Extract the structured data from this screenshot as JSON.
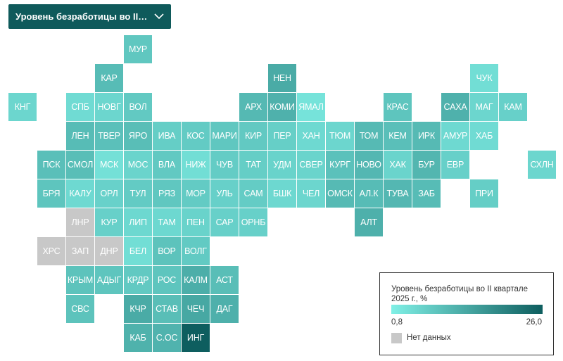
{
  "dropdown": {
    "label": "Уровень безработицы во II кв..."
  },
  "colors": {
    "low": "#80f0e6",
    "high": "#0e5e5f",
    "no_data": "#c8c8c8",
    "dropdown_bg": "#0f5a5b"
  },
  "chart_data": {
    "type": "heatmap",
    "title": "Уровень безработицы во II квартале 2025 г., %",
    "scale": {
      "min": 0.8,
      "max": 26.0,
      "min_label": "0,8",
      "max_label": "26,0"
    },
    "no_data_label": "Нет данных",
    "regions": [
      {
        "label": "МУР",
        "row": 0,
        "col": 4,
        "value": 2.8
      },
      {
        "label": "КАР",
        "row": 1,
        "col": 3,
        "value": 4.0
      },
      {
        "label": "НЕН",
        "row": 1,
        "col": 9,
        "value": 6.5
      },
      {
        "label": "ЧУК",
        "row": 1,
        "col": 16,
        "value": 1.2
      },
      {
        "label": "КНГ",
        "row": 2,
        "col": 0,
        "value": 1.6
      },
      {
        "label": "СПБ",
        "row": 2,
        "col": 2,
        "value": 1.3
      },
      {
        "label": "НОВГ",
        "row": 2,
        "col": 3,
        "value": 1.6
      },
      {
        "label": "ВОЛ",
        "row": 2,
        "col": 4,
        "value": 2.6
      },
      {
        "label": "АРХ",
        "row": 2,
        "col": 8,
        "value": 4.4
      },
      {
        "label": "КОМИ",
        "row": 2,
        "col": 9,
        "value": 5.5
      },
      {
        "label": "ЯМАЛ",
        "row": 2,
        "col": 10,
        "value": 1.0
      },
      {
        "label": "КРАС",
        "row": 2,
        "col": 13,
        "value": 3.0
      },
      {
        "label": "САХА",
        "row": 2,
        "col": 15,
        "value": 5.5
      },
      {
        "label": "МАГ",
        "row": 2,
        "col": 16,
        "value": 1.6
      },
      {
        "label": "КАМ",
        "row": 2,
        "col": 17,
        "value": 2.0
      },
      {
        "label": "ЛЕН",
        "row": 3,
        "col": 2,
        "value": 4.0
      },
      {
        "label": "ТВЕР",
        "row": 3,
        "col": 3,
        "value": 3.5
      },
      {
        "label": "ЯРО",
        "row": 3,
        "col": 4,
        "value": 3.8
      },
      {
        "label": "ИВА",
        "row": 3,
        "col": 5,
        "value": 2.2
      },
      {
        "label": "КОС",
        "row": 3,
        "col": 6,
        "value": 2.4
      },
      {
        "label": "МАРИ",
        "row": 3,
        "col": 7,
        "value": 2.8
      },
      {
        "label": "КИР",
        "row": 3,
        "col": 8,
        "value": 2.6
      },
      {
        "label": "ПЕР",
        "row": 3,
        "col": 9,
        "value": 2.1
      },
      {
        "label": "ХАН",
        "row": 3,
        "col": 10,
        "value": 1.4
      },
      {
        "label": "ТЮМ",
        "row": 3,
        "col": 11,
        "value": 1.6
      },
      {
        "label": "ТОМ",
        "row": 3,
        "col": 12,
        "value": 4.2
      },
      {
        "label": "КЕМ",
        "row": 3,
        "col": 13,
        "value": 3.6
      },
      {
        "label": "ИРК",
        "row": 3,
        "col": 14,
        "value": 4.2
      },
      {
        "label": "АМУР",
        "row": 3,
        "col": 15,
        "value": 1.4
      },
      {
        "label": "ХАБ",
        "row": 3,
        "col": 16,
        "value": 1.3
      },
      {
        "label": "ПСК",
        "row": 4,
        "col": 1,
        "value": 3.6
      },
      {
        "label": "СМОЛ",
        "row": 4,
        "col": 2,
        "value": 3.8
      },
      {
        "label": "МСК",
        "row": 4,
        "col": 3,
        "value": 1.1
      },
      {
        "label": "МОС",
        "row": 4,
        "col": 4,
        "value": 1.7
      },
      {
        "label": "ВЛА",
        "row": 4,
        "col": 5,
        "value": 2.6
      },
      {
        "label": "НИЖ",
        "row": 4,
        "col": 6,
        "value": 1.2
      },
      {
        "label": "ЧУВ",
        "row": 4,
        "col": 7,
        "value": 2.3
      },
      {
        "label": "ТАТ",
        "row": 4,
        "col": 8,
        "value": 2.2
      },
      {
        "label": "УДМ",
        "row": 4,
        "col": 9,
        "value": 1.8
      },
      {
        "label": "СВЕР",
        "row": 4,
        "col": 10,
        "value": 1.7
      },
      {
        "label": "КУРГ",
        "row": 4,
        "col": 11,
        "value": 3.4
      },
      {
        "label": "НОВО",
        "row": 4,
        "col": 12,
        "value": 4.6
      },
      {
        "label": "ХАК",
        "row": 4,
        "col": 13,
        "value": 1.7
      },
      {
        "label": "БУР",
        "row": 4,
        "col": 14,
        "value": 4.8
      },
      {
        "label": "ЕВР",
        "row": 4,
        "col": 15,
        "value": 2.0
      },
      {
        "label": "СХЛН",
        "row": 4,
        "col": 18,
        "value": 1.6
      },
      {
        "label": "БРЯ",
        "row": 5,
        "col": 1,
        "value": 3.0
      },
      {
        "label": "КАЛУ",
        "row": 5,
        "col": 2,
        "value": 1.4
      },
      {
        "label": "ОРЛ",
        "row": 5,
        "col": 3,
        "value": 1.9
      },
      {
        "label": "ТУЛ",
        "row": 5,
        "col": 4,
        "value": 2.4
      },
      {
        "label": "РЯЗ",
        "row": 5,
        "col": 5,
        "value": 2.8
      },
      {
        "label": "МОР",
        "row": 5,
        "col": 6,
        "value": 2.4
      },
      {
        "label": "УЛЬ",
        "row": 5,
        "col": 7,
        "value": 2.0
      },
      {
        "label": "САМ",
        "row": 5,
        "col": 8,
        "value": 2.3
      },
      {
        "label": "БШК",
        "row": 5,
        "col": 9,
        "value": 1.5
      },
      {
        "label": "ЧЕЛ",
        "row": 5,
        "col": 10,
        "value": 1.6
      },
      {
        "label": "ОМСК",
        "row": 5,
        "col": 11,
        "value": 4.2
      },
      {
        "label": "АЛ.К",
        "row": 5,
        "col": 12,
        "value": 4.0
      },
      {
        "label": "ТУВА",
        "row": 5,
        "col": 13,
        "value": 4.6
      },
      {
        "label": "ЗАБ",
        "row": 5,
        "col": 14,
        "value": 4.0
      },
      {
        "label": "ПРИ",
        "row": 5,
        "col": 16,
        "value": 2.2
      },
      {
        "label": "ЛНР",
        "row": 6,
        "col": 2,
        "value": null
      },
      {
        "label": "КУР",
        "row": 6,
        "col": 3,
        "value": 2.0
      },
      {
        "label": "ЛИП",
        "row": 6,
        "col": 4,
        "value": 1.5
      },
      {
        "label": "ТАМ",
        "row": 6,
        "col": 5,
        "value": 1.5
      },
      {
        "label": "ПЕН",
        "row": 6,
        "col": 6,
        "value": 1.8
      },
      {
        "label": "САР",
        "row": 6,
        "col": 7,
        "value": 2.0
      },
      {
        "label": "ОРНБ",
        "row": 6,
        "col": 8,
        "value": 2.0
      },
      {
        "label": "АЛТ",
        "row": 6,
        "col": 12,
        "value": 5.6
      },
      {
        "label": "ХРС",
        "row": 7,
        "col": 1,
        "value": null
      },
      {
        "label": "ЗАП",
        "row": 7,
        "col": 2,
        "value": null
      },
      {
        "label": "ДНР",
        "row": 7,
        "col": 3,
        "value": null
      },
      {
        "label": "БЕЛ",
        "row": 7,
        "col": 4,
        "value": 1.2
      },
      {
        "label": "ВОР",
        "row": 7,
        "col": 5,
        "value": 3.2
      },
      {
        "label": "ВОЛГ",
        "row": 7,
        "col": 6,
        "value": 2.5
      },
      {
        "label": "КРЫМ",
        "row": 8,
        "col": 2,
        "value": 3.2
      },
      {
        "label": "АДЫГ",
        "row": 8,
        "col": 3,
        "value": 3.0
      },
      {
        "label": "КРДР",
        "row": 8,
        "col": 4,
        "value": 2.6
      },
      {
        "label": "РОС",
        "row": 8,
        "col": 5,
        "value": 3.0
      },
      {
        "label": "КАЛМ",
        "row": 8,
        "col": 6,
        "value": 6.0
      },
      {
        "label": "АСТ",
        "row": 8,
        "col": 7,
        "value": 3.8
      },
      {
        "label": "СВС",
        "row": 9,
        "col": 2,
        "value": 3.2
      },
      {
        "label": "КЧР",
        "row": 9,
        "col": 4,
        "value": 6.5
      },
      {
        "label": "СТАВ",
        "row": 9,
        "col": 5,
        "value": 3.8
      },
      {
        "label": "ЧЕЧ",
        "row": 9,
        "col": 6,
        "value": 7.0
      },
      {
        "label": "ДАГ",
        "row": 9,
        "col": 7,
        "value": 5.6
      },
      {
        "label": "КАБ",
        "row": 10,
        "col": 4,
        "value": 5.4
      },
      {
        "label": "С.ОС",
        "row": 10,
        "col": 5,
        "value": 5.2
      },
      {
        "label": "ИНГ",
        "row": 10,
        "col": 6,
        "value": 26.0
      }
    ]
  }
}
